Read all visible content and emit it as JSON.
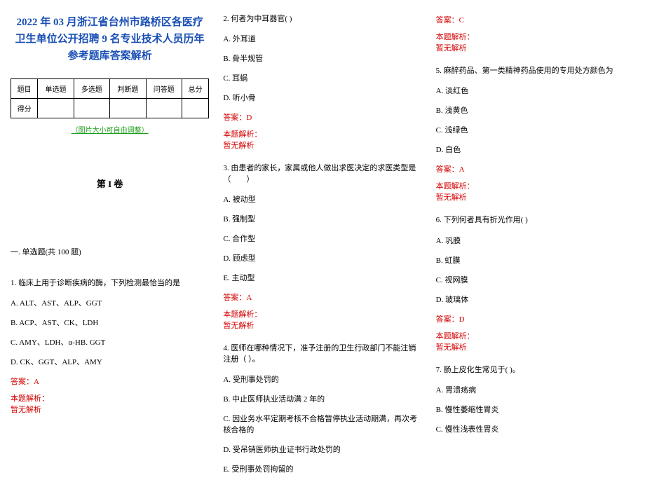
{
  "title_line1": "2022 年 03 月浙江省台州市路桥区各医疗",
  "title_line2": "卫生单位公开招聘 9 名专业技术人员历年",
  "title_line3": "参考题库答案解析",
  "table": {
    "headers": [
      "题目",
      "单选题",
      "多选题",
      "判断题",
      "问答题",
      "总分"
    ],
    "row_label": "得分"
  },
  "note": "（图片大小可自由调整）",
  "volume": "第 I 卷",
  "section": "一. 单选题(共 100 题)",
  "exp_label": "本题解析：",
  "exp_body": "暂无解析",
  "q1": {
    "stem": "1. 临床上用于诊断疾病的酶，下列检测最恰当的是",
    "a": "A. ALT、AST、ALP、GGT",
    "b": "B. ACP、AST、CK、LDH",
    "c": "C. AMY、LDH、α-HB. GGT",
    "d": "D. CK、GGT、ALP、AMY",
    "ans": "答案：A"
  },
  "q2": {
    "stem": "2. 何者为中耳器官(  )",
    "a": "A. 外耳道",
    "b": "B. 骨半规管",
    "c": "C. 耳蜗",
    "d": "D. 听小骨",
    "ans": "答案：D"
  },
  "q3": {
    "stem": "3. 由患者的家长，家属或他人做出求医决定的求医类型是（　　）",
    "a": "A. 被动型",
    "b": "B. 强制型",
    "c": "C. 合作型",
    "d": "D. 顾虑型",
    "e": "E. 主动型",
    "ans": "答案：A"
  },
  "q4": {
    "stem": "4. 医师在哪种情况下，准予注册的卫生行政部门不能注销注册（ ）。",
    "a": "A. 受刑事处罚的",
    "b": "B. 中止医师执业活动满 2 年的",
    "c": "C. 因业务水平定期考核不合格暂停执业活动期满，再次考核合格的",
    "d": "D. 受吊销医师执业证书行政处罚的",
    "e": "E. 受刑事处罚拘留的",
    "ans": "答案：C"
  },
  "q5": {
    "stem": "5. 麻醉药品、第一类精神药品使用的专用处方颜色为",
    "a": "A. 淡红色",
    "b": "B. 浅黄色",
    "c": "C. 浅绿色",
    "d": "D. 白色",
    "ans": "答案：A"
  },
  "q6": {
    "stem": "6. 下列何者具有折光作用(  )",
    "a": "A. 巩膜",
    "b": "B. 虹膜",
    "c": "C. 视网膜",
    "d": "D. 玻璃体",
    "ans": "答案：D"
  },
  "q7": {
    "stem": "7. 肠上皮化生常见于(  )。",
    "a": "A. 胃溃疡病",
    "b": "B. 慢性萎缩性胃炎",
    "c": "C. 慢性浅表性胃炎"
  }
}
